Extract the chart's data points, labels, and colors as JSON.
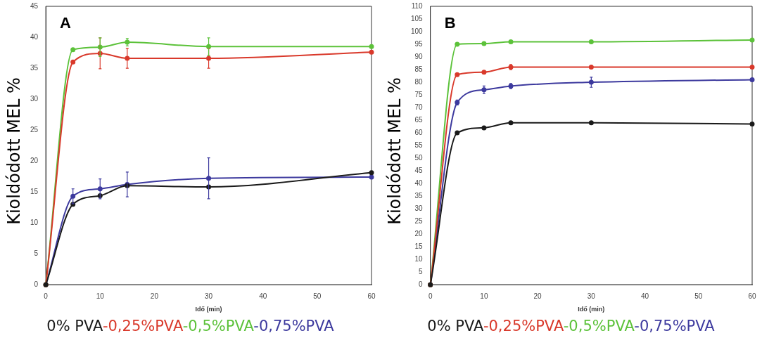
{
  "chart_data": [
    {
      "type": "line",
      "title": "A",
      "xlabel": "Idő (min)",
      "ylabel": "Kioldódott MEL %",
      "x": [
        0,
        5,
        10,
        15,
        30,
        60
      ],
      "xlim": [
        0,
        60
      ],
      "xticks": [
        0,
        10,
        20,
        30,
        40,
        50,
        60
      ],
      "ylim": [
        0,
        45
      ],
      "yticks": [
        0,
        5,
        10,
        15,
        20,
        25,
        30,
        35,
        40,
        45
      ],
      "grid": false,
      "marker": "circle",
      "line_style": "solid",
      "legend": "bottom",
      "series": [
        {
          "name": "0% PVA",
          "color": "#1a1a1a",
          "values": [
            0,
            13,
            14.4,
            16,
            15.8,
            18.1
          ]
        },
        {
          "name": "-0,25%PVA",
          "color": "#d9392b",
          "values": [
            0,
            36,
            37.4,
            36.6,
            36.6,
            37.6
          ],
          "errors": [
            null,
            null,
            2.5,
            1.6,
            1.6,
            null
          ]
        },
        {
          "name": "-0,5%PVA",
          "color": "#5cc23a",
          "values": [
            0,
            38,
            38.4,
            39.2,
            38.5,
            38.5
          ],
          "errors": [
            null,
            null,
            1.5,
            0.6,
            1.4,
            null
          ]
        },
        {
          "name": "-0,75%PVA",
          "color": "#3d3a9e",
          "values": [
            0,
            14.3,
            15.5,
            16.2,
            17.2,
            17.4
          ],
          "errors": [
            null,
            1.2,
            1.6,
            2,
            3.3,
            null
          ]
        }
      ]
    },
    {
      "type": "line",
      "title": "B",
      "xlabel": "Idő (min)",
      "ylabel": "Kioldódott MEL %",
      "x": [
        0,
        5,
        10,
        15,
        30,
        60
      ],
      "xlim": [
        0,
        60
      ],
      "xticks": [
        0,
        10,
        20,
        30,
        40,
        50,
        60
      ],
      "ylim": [
        0,
        110
      ],
      "yticks": [
        0,
        5,
        10,
        15,
        20,
        25,
        30,
        35,
        40,
        45,
        50,
        55,
        60,
        65,
        70,
        75,
        80,
        85,
        90,
        95,
        100,
        105,
        110
      ],
      "grid": false,
      "marker": "circle",
      "line_style": "solid",
      "legend": "bottom",
      "series": [
        {
          "name": "0% PVA",
          "color": "#1a1a1a",
          "values": [
            0,
            60,
            62,
            64,
            64,
            63.5
          ]
        },
        {
          "name": "-0,25%PVA",
          "color": "#d9392b",
          "values": [
            0,
            83,
            84,
            86,
            86,
            86
          ],
          "errors": [
            null,
            null,
            null,
            1,
            null,
            null
          ]
        },
        {
          "name": "-0,5%PVA",
          "color": "#5cc23a",
          "values": [
            0,
            95,
            95.3,
            96,
            96,
            96.7
          ]
        },
        {
          "name": "-0,75%PVA",
          "color": "#3d3a9e",
          "values": [
            0,
            72,
            77,
            78.5,
            80,
            81
          ],
          "errors": [
            null,
            1,
            1.5,
            1,
            2,
            null
          ]
        }
      ]
    }
  ]
}
